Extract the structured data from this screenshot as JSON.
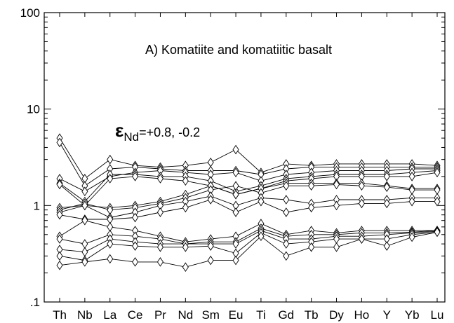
{
  "chart_data": {
    "type": "line",
    "title": "A) Komatiite and komatiitic basalt",
    "annotation": {
      "symbol": "ε",
      "subscript": "Nd",
      "text": "=+0.8, -0.2"
    },
    "xlabel": "",
    "ylabel": "",
    "y_scale": "log",
    "ylim": [
      0.1,
      100
    ],
    "y_ticks": [
      "100",
      "10",
      "1",
      ".1"
    ],
    "y_tick_values": [
      100,
      10,
      1,
      0.1
    ],
    "categories": [
      "Th",
      "Nb",
      "La",
      "Ce",
      "Pr",
      "Nd",
      "Sm",
      "Eu",
      "Ti",
      "Gd",
      "Tb",
      "Dy",
      "Ho",
      "Y",
      "Yb",
      "Lu"
    ],
    "marker": "diamond",
    "series": [
      {
        "values": [
          5.0,
          1.9,
          3.0,
          2.6,
          2.5,
          2.6,
          2.8,
          3.8,
          2.2,
          2.7,
          2.6,
          2.7,
          2.7,
          2.7,
          2.7,
          2.6
        ]
      },
      {
        "values": [
          4.5,
          1.6,
          2.4,
          2.5,
          2.4,
          2.3,
          2.3,
          2.3,
          2.1,
          2.4,
          2.5,
          2.5,
          2.5,
          2.5,
          2.5,
          2.5
        ]
      },
      {
        "values": [
          1.9,
          1.4,
          2.0,
          2.2,
          2.3,
          2.2,
          2.1,
          2.2,
          1.8,
          2.1,
          2.2,
          2.3,
          2.3,
          2.3,
          2.4,
          2.4
        ]
      },
      {
        "values": [
          1.7,
          1.1,
          2.1,
          2.1,
          2.0,
          2.0,
          1.8,
          1.4,
          1.6,
          1.9,
          2.0,
          2.1,
          2.1,
          2.1,
          2.2,
          2.3
        ]
      },
      {
        "values": [
          1.65,
          1.0,
          1.9,
          2.0,
          1.9,
          1.8,
          1.6,
          1.3,
          1.5,
          1.8,
          1.9,
          2.0,
          2.0,
          2.0,
          2.0,
          2.2
        ]
      },
      {
        "values": [
          0.95,
          1.0,
          0.95,
          1.0,
          1.1,
          1.3,
          1.6,
          1.3,
          1.5,
          1.7,
          1.7,
          1.7,
          1.7,
          1.6,
          1.5,
          1.5
        ]
      },
      {
        "values": [
          0.9,
          1.05,
          0.9,
          0.95,
          1.05,
          1.2,
          1.45,
          1.6,
          1.35,
          1.6,
          1.6,
          1.65,
          1.6,
          1.55,
          1.45,
          1.45
        ]
      },
      {
        "values": [
          0.85,
          1.0,
          0.75,
          0.85,
          1.0,
          1.1,
          1.25,
          1.0,
          1.2,
          1.15,
          1.05,
          1.15,
          1.15,
          1.15,
          1.2,
          1.2
        ]
      },
      {
        "values": [
          0.8,
          0.72,
          0.72,
          0.75,
          0.85,
          0.95,
          1.15,
          0.85,
          1.1,
          0.85,
          0.95,
          1.0,
          1.05,
          1.05,
          1.1,
          1.1
        ]
      },
      {
        "values": [
          0.48,
          0.7,
          0.6,
          0.55,
          0.48,
          0.42,
          0.45,
          0.48,
          0.65,
          0.5,
          0.55,
          0.52,
          0.55,
          0.55,
          0.55,
          0.55
        ]
      },
      {
        "values": [
          0.45,
          0.4,
          0.5,
          0.48,
          0.45,
          0.4,
          0.42,
          0.42,
          0.58,
          0.48,
          0.5,
          0.5,
          0.52,
          0.52,
          0.53,
          0.55
        ]
      },
      {
        "values": [
          0.35,
          0.33,
          0.45,
          0.42,
          0.4,
          0.4,
          0.4,
          0.4,
          0.55,
          0.45,
          0.45,
          0.48,
          0.48,
          0.5,
          0.52,
          0.54
        ]
      },
      {
        "values": [
          0.3,
          0.27,
          0.4,
          0.38,
          0.37,
          0.37,
          0.38,
          0.32,
          0.52,
          0.4,
          0.42,
          0.45,
          0.45,
          0.45,
          0.5,
          0.53
        ]
      },
      {
        "values": [
          0.24,
          0.26,
          0.28,
          0.26,
          0.26,
          0.23,
          0.27,
          0.27,
          0.48,
          0.3,
          0.37,
          0.37,
          0.45,
          0.38,
          0.47,
          0.53
        ]
      }
    ]
  }
}
